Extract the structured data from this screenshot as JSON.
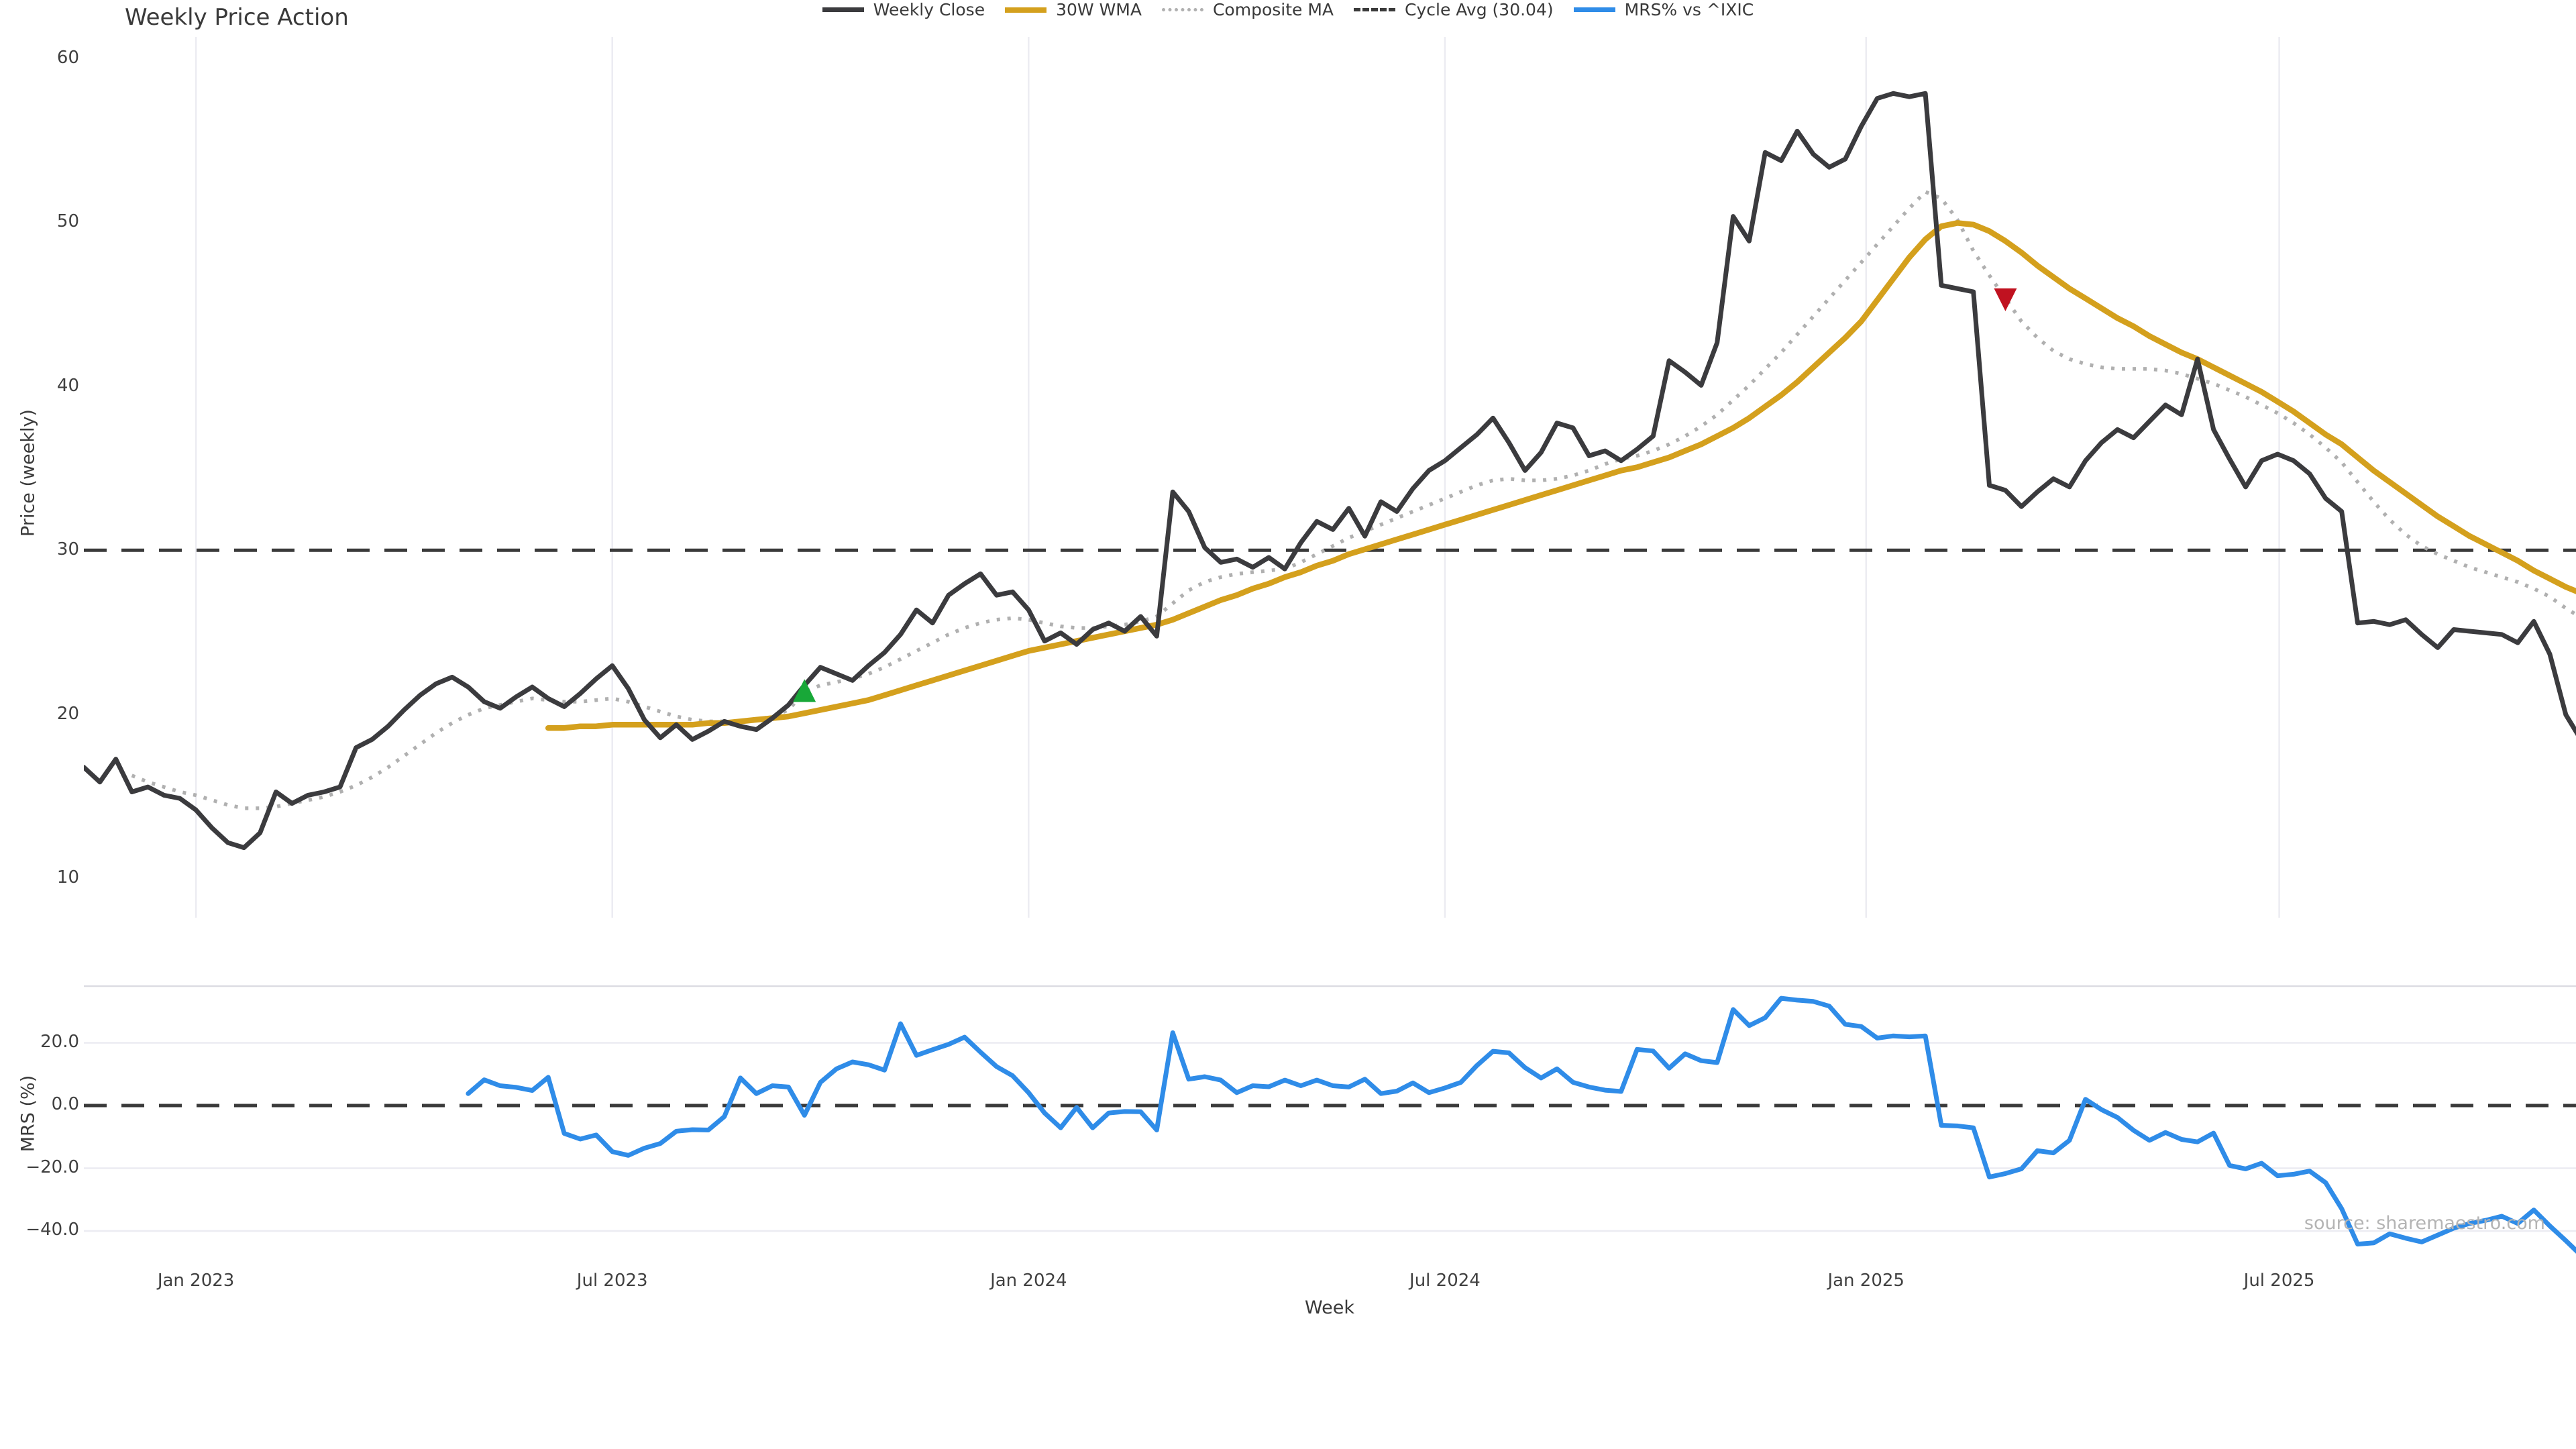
{
  "title": "Weekly Price Action",
  "xlabel": "Week",
  "source": "source: sharemaestro.com",
  "price_panel": {
    "ylabel": "Price (weekly)",
    "yticks": [
      60,
      50,
      40,
      30,
      20,
      10
    ]
  },
  "mrs_panel": {
    "ylabel": "MRS (%)",
    "yticks": [
      {
        "v": 20,
        "label": "20.0"
      },
      {
        "v": 0,
        "label": "0.0"
      },
      {
        "v": -20,
        "label": "−20.0"
      },
      {
        "v": -40,
        "label": "−40.0"
      }
    ]
  },
  "legend": [
    {
      "label": "Weekly Close",
      "style": "solid",
      "color": "#3b3b3e",
      "thick": 7
    },
    {
      "label": "30W WMA",
      "style": "solid",
      "color": "#d4a01d",
      "thick": 8
    },
    {
      "label": "Composite MA",
      "style": "dotted",
      "color": "#b0b0b0",
      "thick": 5
    },
    {
      "label": "Cycle Avg (30.04)",
      "style": "dashed",
      "color": "#3a3a3a",
      "thick": 5
    },
    {
      "label": "MRS% vs ^IXIC",
      "style": "solid",
      "color": "#2f8ce8",
      "thick": 7
    }
  ],
  "colors": {
    "close": "#3b3b3e",
    "wma": "#d4a01d",
    "composite": "#b0b0b0",
    "cycle_avg": "#3a3a3a",
    "mrs": "#2f8ce8",
    "buy_marker": "#18a838",
    "sell_marker": "#c01220",
    "grid": "#ececf2",
    "spine": "#dcdce2"
  },
  "chart_data": {
    "type": "line",
    "title": "Weekly Price Action",
    "x_unit": "week_index",
    "n_weeks": 157,
    "x_ticks": [
      {
        "label": "Jan 2023",
        "index": 7
      },
      {
        "label": "Jul 2023",
        "index": 33
      },
      {
        "label": "Jan 2024",
        "index": 59
      },
      {
        "label": "Jul 2024",
        "index": 85
      },
      {
        "label": "Jan 2025",
        "index": 111.3
      },
      {
        "label": "Jul 2025",
        "index": 137.1
      }
    ],
    "panels": [
      {
        "name": "price",
        "ylabel": "Price (weekly)",
        "ylim": [
          7.6,
          61.5
        ],
        "grid": "x",
        "cycle_avg": 30.04,
        "series": [
          {
            "name": "Weekly Close",
            "color_key": "close",
            "style": "solid",
            "start_index": 0,
            "values": [
              16.8,
              15.9,
              17.3,
              15.3,
              15.6,
              15.1,
              14.9,
              14.2,
              13.1,
              12.2,
              11.9,
              12.8,
              15.3,
              14.6,
              15.1,
              15.3,
              15.6,
              18.0,
              18.5,
              19.3,
              20.3,
              21.2,
              21.9,
              22.3,
              21.7,
              20.8,
              20.4,
              21.1,
              21.7,
              21.0,
              20.5,
              21.3,
              22.2,
              23.0,
              21.6,
              19.7,
              18.6,
              19.4,
              18.5,
              19.0,
              19.6,
              19.3,
              19.1,
              19.8,
              20.6,
              21.8,
              22.9,
              22.5,
              22.1,
              23.0,
              23.8,
              24.9,
              26.4,
              25.6,
              27.3,
              28.0,
              28.6,
              27.3,
              27.5,
              26.4,
              24.5,
              25.0,
              24.3,
              25.2,
              25.6,
              25.1,
              26.0,
              24.8,
              33.6,
              32.4,
              30.2,
              29.3,
              29.5,
              29.0,
              29.6,
              28.9,
              30.5,
              31.8,
              31.3,
              32.6,
              30.9,
              33.0,
              32.4,
              33.8,
              34.9,
              35.5,
              36.3,
              37.1,
              38.1,
              36.6,
              34.9,
              36.0,
              37.8,
              37.5,
              35.8,
              36.1,
              35.5,
              36.2,
              37.0,
              41.6,
              40.9,
              40.1,
              42.7,
              50.4,
              48.9,
              54.3,
              53.8,
              55.6,
              54.2,
              53.4,
              53.9,
              55.9,
              57.6,
              57.9,
              57.7,
              57.9,
              46.2,
              46.0,
              45.8,
              34.0,
              33.7,
              32.7,
              33.6,
              34.4,
              33.9,
              35.5,
              36.6,
              37.4,
              36.9,
              37.9,
              38.9,
              38.3,
              41.7,
              37.4,
              35.6,
              33.9,
              35.5,
              35.9,
              35.5,
              34.7,
              33.2,
              32.4,
              25.6,
              25.7,
              25.5,
              25.8,
              24.9,
              24.1,
              25.2,
              25.1,
              25.0,
              24.9,
              24.4,
              25.7,
              23.7,
              20.0,
              18.4
            ]
          },
          {
            "name": "30W WMA",
            "color_key": "wma",
            "style": "solid",
            "start_index": 29,
            "values": [
              19.2,
              19.2,
              19.3,
              19.3,
              19.4,
              19.4,
              19.4,
              19.4,
              19.4,
              19.4,
              19.5,
              19.5,
              19.6,
              19.7,
              19.8,
              19.9,
              20.1,
              20.3,
              20.5,
              20.7,
              20.9,
              21.2,
              21.5,
              21.8,
              22.1,
              22.4,
              22.7,
              23.0,
              23.3,
              23.6,
              23.9,
              24.1,
              24.3,
              24.5,
              24.7,
              24.9,
              25.1,
              25.3,
              25.5,
              25.8,
              26.2,
              26.6,
              27.0,
              27.3,
              27.7,
              28.0,
              28.4,
              28.7,
              29.1,
              29.4,
              29.8,
              30.1,
              30.4,
              30.7,
              31.0,
              31.3,
              31.6,
              31.9,
              32.2,
              32.5,
              32.8,
              33.1,
              33.4,
              33.7,
              34.0,
              34.3,
              34.6,
              34.9,
              35.1,
              35.4,
              35.7,
              36.1,
              36.5,
              37.0,
              37.5,
              38.1,
              38.8,
              39.5,
              40.3,
              41.2,
              42.1,
              43.0,
              44.0,
              45.3,
              46.6,
              47.9,
              49.0,
              49.8,
              50.0,
              49.9,
              49.5,
              48.9,
              48.2,
              47.4,
              46.7,
              46.0,
              45.4,
              44.8,
              44.2,
              43.7,
              43.1,
              42.6,
              42.1,
              41.7,
              41.2,
              40.7,
              40.2,
              39.7,
              39.1,
              38.5,
              37.8,
              37.1,
              36.5,
              35.7,
              34.9,
              34.2,
              33.5,
              32.8,
              32.1,
              31.5,
              30.9,
              30.4,
              29.9,
              29.4,
              28.8,
              28.3,
              27.8,
              27.4
            ]
          },
          {
            "name": "Composite MA",
            "color_key": "composite",
            "style": "dotted",
            "start_index": 3,
            "values": [
              16.3,
              15.9,
              15.6,
              15.3,
              15.1,
              14.8,
              14.5,
              14.3,
              14.3,
              14.4,
              14.6,
              14.8,
              15.0,
              15.3,
              15.7,
              16.2,
              16.8,
              17.5,
              18.2,
              18.9,
              19.5,
              20.0,
              20.4,
              20.6,
              20.8,
              21.0,
              20.9,
              20.8,
              20.8,
              20.9,
              21.0,
              20.8,
              20.5,
              20.2,
              19.9,
              19.7,
              19.6,
              19.6,
              19.6,
              19.7,
              19.9,
              20.3,
              21.4,
              21.8,
              22.0,
              22.2,
              22.5,
              22.9,
              23.4,
              23.9,
              24.4,
              24.9,
              25.3,
              25.6,
              25.8,
              25.9,
              25.8,
              25.6,
              25.4,
              25.3,
              25.3,
              25.4,
              25.5,
              25.7,
              26.0,
              26.8,
              27.6,
              28.1,
              28.4,
              28.6,
              28.7,
              28.8,
              28.9,
              29.3,
              29.8,
              30.3,
              30.8,
              31.2,
              31.6,
              32.0,
              32.4,
              32.8,
              33.2,
              33.6,
              34.0,
              34.3,
              34.4,
              34.3,
              34.3,
              34.4,
              34.6,
              34.9,
              35.3,
              35.6,
              35.8,
              36.1,
              36.5,
              37.0,
              37.6,
              38.3,
              39.2,
              40.1,
              41.1,
              42.1,
              43.2,
              44.3,
              45.4,
              46.5,
              47.6,
              48.7,
              49.8,
              50.9,
              51.9,
              51.5,
              50.2,
              48.3,
              46.8,
              45.4,
              44.0,
              43.0,
              42.2,
              41.7,
              41.4,
              41.2,
              41.1,
              41.1,
              41.1,
              41.0,
              40.8,
              40.5,
              40.2,
              39.8,
              39.4,
              38.9,
              38.4,
              37.8,
              37.1,
              36.3,
              35.4,
              34.2,
              33.0,
              31.9,
              31.0,
              30.3,
              29.8,
              29.4,
              29.0,
              28.7,
              28.4,
              28.1,
              27.7,
              27.2,
              26.5,
              25.9
            ]
          }
        ],
        "markers": [
          {
            "type": "buy",
            "shape": "triangle-up",
            "color_key": "buy_marker",
            "index": 45,
            "value": 21.4
          },
          {
            "type": "sell",
            "shape": "triangle-down",
            "color_key": "sell_marker",
            "index": 120,
            "value": 45.4
          }
        ]
      },
      {
        "name": "mrs",
        "ylabel": "MRS (%)",
        "ylim": [
          -47.9,
          38.1
        ],
        "grid": "y",
        "zero_line": 0.0,
        "series": [
          {
            "name": "MRS% vs ^IXIC",
            "color_key": "mrs",
            "style": "solid",
            "start_index": 24,
            "values": [
              3.8,
              8.2,
              6.3,
              5.8,
              4.8,
              9.0,
              -8.9,
              -10.7,
              -9.4,
              -14.7,
              -15.9,
              -13.6,
              -12.1,
              -8.2,
              -7.7,
              -7.8,
              -3.5,
              8.8,
              3.8,
              6.3,
              5.9,
              -3.1,
              7.4,
              11.7,
              13.9,
              13.0,
              11.3,
              26.1,
              16.0,
              17.8,
              19.5,
              21.8,
              17.0,
              12.4,
              9.5,
              4.1,
              -2.4,
              -7.1,
              -0.6,
              -7.1,
              -2.4,
              -1.9,
              -2.0,
              -7.8,
              23.2,
              8.4,
              9.2,
              8.1,
              4.1,
              6.3,
              6.0,
              8.1,
              6.3,
              8.1,
              6.3,
              5.9,
              8.4,
              3.8,
              4.6,
              7.2,
              4.1,
              5.6,
              7.4,
              12.8,
              17.3,
              16.8,
              12.1,
              8.8,
              11.7,
              7.4,
              5.9,
              4.9,
              4.5,
              17.9,
              17.4,
              11.9,
              16.5,
              14.3,
              13.7,
              30.6,
              25.5,
              28.0,
              34.2,
              33.6,
              33.2,
              31.7,
              25.9,
              25.2,
              21.5,
              22.2,
              21.9,
              22.2,
              -6.3,
              -6.5,
              -7.1,
              -22.8,
              -21.7,
              -20.2,
              -14.4,
              -15.1,
              -11.1,
              2.0,
              -1.3,
              -3.8,
              -7.9,
              -11.1,
              -8.6,
              -10.8,
              -11.6,
              -8.8,
              -19.1,
              -20.2,
              -18.4,
              -22.4,
              -21.9,
              -20.9,
              -24.6,
              -32.9,
              -44.2,
              -43.8,
              -40.9,
              -42.3,
              -43.5,
              -41.3,
              -39.1,
              -37.6,
              -36.6,
              -35.3,
              -37.6,
              -33.3,
              -38.4,
              -43.1,
              -48.0
            ]
          }
        ]
      }
    ]
  }
}
